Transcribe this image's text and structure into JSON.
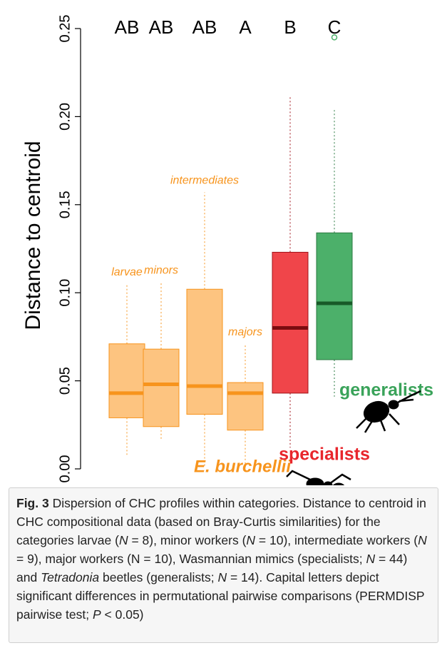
{
  "chart_data": {
    "type": "box",
    "y_label": "Distance to centroid",
    "ylim": [
      0,
      0.25
    ],
    "yticks": [
      {
        "value": 0,
        "label": "0.00"
      },
      0.05,
      {
        "value": 0.1,
        "label": "0.10"
      },
      0.15,
      {
        "value": 0.2,
        "label": "0.20"
      },
      0.25
    ],
    "boxes": [
      {
        "letter": "AB",
        "label": "larvae",
        "fill": "#fdc480",
        "stroke": "#f7941d",
        "median_color": "#f7941d",
        "whisker_low": 0.008,
        "q1": 0.029,
        "median": 0.043,
        "q3": 0.071,
        "whisker_high": 0.105,
        "outliers": []
      },
      {
        "letter": "AB",
        "label": "minors",
        "fill": "#fdc480",
        "stroke": "#f7941d",
        "median_color": "#f7941d",
        "whisker_low": 0.016,
        "q1": 0.024,
        "median": 0.048,
        "q3": 0.068,
        "whisker_high": 0.106,
        "outliers": []
      },
      {
        "letter": "AB",
        "label": "intermediates",
        "fill": "#fdc480",
        "stroke": "#f7941d",
        "median_color": "#f7941d",
        "whisker_low": 0.001,
        "q1": 0.031,
        "median": 0.047,
        "q3": 0.102,
        "whisker_high": 0.157,
        "outliers": []
      },
      {
        "letter": "A",
        "label": "majors",
        "fill": "#fdc480",
        "stroke": "#f7941d",
        "median_color": "#f7941d",
        "whisker_low": 0,
        "q1": 0.022,
        "median": 0.043,
        "q3": 0.049,
        "whisker_high": 0.071,
        "outliers": []
      },
      {
        "letter": "B",
        "fill": "#f0454a",
        "stroke": "#a01218",
        "median_color": "#7a0c10",
        "whisker_low": 0.012,
        "q1": 0.043,
        "median": 0.08,
        "q3": 0.123,
        "whisker_high": 0.212,
        "outliers": []
      },
      {
        "letter": "C",
        "fill": "#4cb06a",
        "stroke": "#2a7a40",
        "median_color": "#185a28",
        "whisker_low": 0.041,
        "q1": 0.062,
        "median": 0.094,
        "q3": 0.134,
        "whisker_high": 0.204,
        "outliers": [
          0.245
        ]
      }
    ],
    "annotations": {
      "species": "E. burchellii",
      "specialists": "specialists",
      "generalists": "generalists"
    }
  },
  "caption": {
    "label": "Fig. 3",
    "title": "Dispersion of CHC profiles within categories.",
    "segments": [
      {
        "text": "Distance to centroid in CHC compositional data (based on Bray-Curtis similarities) for the categories larvae ("
      },
      {
        "text": "N",
        "italic": true
      },
      {
        "text": " = 8), minor workers ("
      },
      {
        "text": "N",
        "italic": true
      },
      {
        "text": " = 10), intermediate workers ("
      },
      {
        "text": "N",
        "italic": true
      },
      {
        "text": " = 9), major workers (N = 10), Wasmannian mimics (specialists; "
      },
      {
        "text": "N",
        "italic": true
      },
      {
        "text": " = 44) and "
      },
      {
        "text": "Tetradonia",
        "italic": true
      },
      {
        "text": " beetles (generalists; "
      },
      {
        "text": "N",
        "italic": true
      },
      {
        "text": " = 14). Capital letters depict significant differences in permutational pairwise comparisons (PERMDISP pairwise test; "
      },
      {
        "text": "P",
        "italic": true
      },
      {
        "text": " < 0.05)"
      }
    ]
  }
}
